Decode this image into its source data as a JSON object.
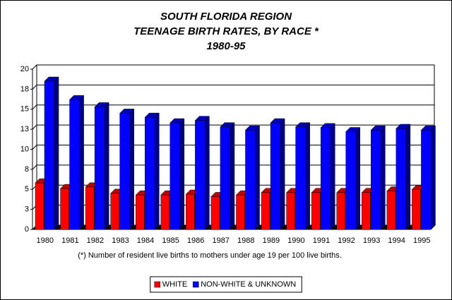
{
  "chart_data": {
    "type": "bar",
    "title": [
      "SOUTH FLORIDA REGION",
      "TEENAGE BIRTH RATES, BY RACE *",
      "1980-95"
    ],
    "note": "(*) Number of resident live births to mothers under age 19 per 100 live births.",
    "categories": [
      "1980",
      "1981",
      "1982",
      "1983",
      "1984",
      "1985",
      "1986",
      "1987",
      "1988",
      "1989",
      "1990",
      "1991",
      "1992",
      "1993",
      "1994",
      "1995"
    ],
    "series": [
      {
        "name": "WHITE",
        "color": "#ff0000",
        "values": [
          5.8,
          5.1,
          5.3,
          4.5,
          4.3,
          4.3,
          4.4,
          4.1,
          4.3,
          4.6,
          4.6,
          4.6,
          4.6,
          4.6,
          4.8,
          5.0
        ]
      },
      {
        "name": "NON-WHITE & UNKNOWN",
        "color": "#0000ff",
        "values": [
          18.5,
          16.2,
          15.3,
          14.5,
          14.0,
          13.3,
          13.6,
          12.8,
          12.4,
          13.3,
          12.8,
          12.7,
          12.2,
          12.4,
          12.6,
          12.4
        ]
      }
    ],
    "ylim": [
      0,
      20
    ],
    "yticks": [
      0,
      {
        "value": 2.5,
        "label": "3"
      },
      5,
      {
        "value": 7.5,
        "label": "8"
      },
      10,
      {
        "value": 12.5,
        "label": "13"
      },
      15,
      {
        "value": 17.5,
        "label": "18"
      },
      20
    ],
    "grid": true,
    "legend": "bottom"
  }
}
